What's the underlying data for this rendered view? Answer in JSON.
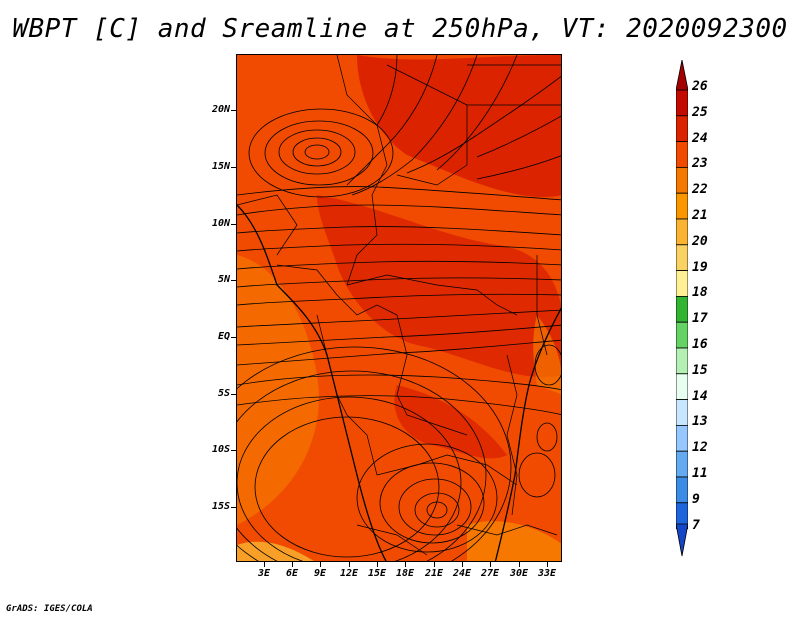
{
  "title": "WBPT [C] and Sreamline at 250hPa, VT: 2020092300",
  "footer": "GrADS: IGES/COLA",
  "lat_labels": [
    "20N",
    "15N",
    "10N",
    "5N",
    "EQ",
    "5S",
    "10S",
    "15S"
  ],
  "lon_labels": [
    "3E",
    "6E",
    "9E",
    "12E",
    "15E",
    "18E",
    "21E",
    "24E",
    "27E",
    "30E",
    "33E"
  ],
  "colorbar": {
    "levels": [
      "26",
      "25",
      "24",
      "23",
      "22",
      "21",
      "20",
      "19",
      "18",
      "17",
      "16",
      "15",
      "14",
      "13",
      "12",
      "11",
      "9",
      "7"
    ],
    "colors": [
      "#a50000",
      "#c30a00",
      "#dc2300",
      "#f04b00",
      "#f57800",
      "#fa9600",
      "#fab432",
      "#fad264",
      "#fff096",
      "#32b432",
      "#64d264",
      "#b4f0b4",
      "#e6fff0",
      "#c8e6ff",
      "#96c8ff",
      "#64aaf0",
      "#3c8ce6",
      "#1e64dc",
      "#1446c8"
    ]
  },
  "colors": {
    "field_main": "#f04b00",
    "field_high": "#dc2300",
    "field_low": "#f57800",
    "streamline": "#000000"
  }
}
